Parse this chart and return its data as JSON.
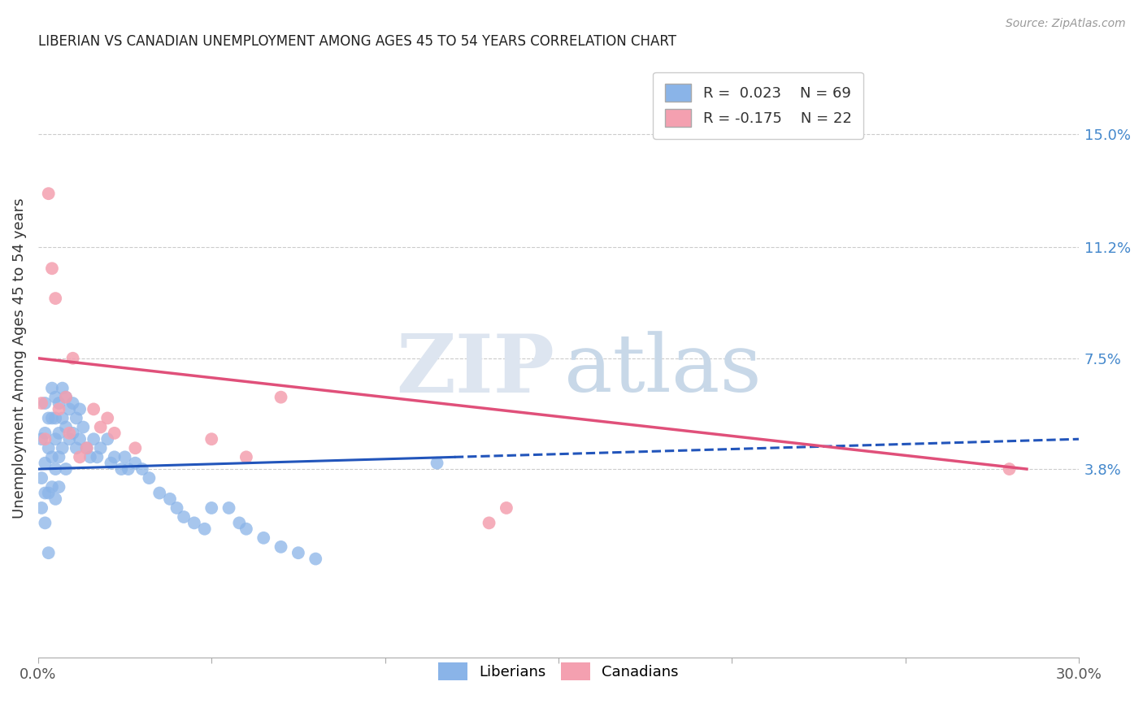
{
  "title": "LIBERIAN VS CANADIAN UNEMPLOYMENT AMONG AGES 45 TO 54 YEARS CORRELATION CHART",
  "source": "Source: ZipAtlas.com",
  "ylabel": "Unemployment Among Ages 45 to 54 years",
  "xlim": [
    0,
    0.3
  ],
  "ylim": [
    -0.025,
    0.175
  ],
  "ytick_positions": [
    0.038,
    0.075,
    0.112,
    0.15
  ],
  "ytick_labels": [
    "3.8%",
    "7.5%",
    "11.2%",
    "15.0%"
  ],
  "liberian_color": "#8ab4e8",
  "canadian_color": "#f4a0b0",
  "trend_liberian_color": "#2255bb",
  "trend_canadian_color": "#e0507a",
  "liberian_label": "Liberians",
  "canadian_label": "Canadians",
  "legend_R_liberian": "R =  0.023",
  "legend_N_liberian": "N = 69",
  "legend_R_canadian": "R = -0.175",
  "legend_N_canadian": "N = 22",
  "lib_trend_x0": 0.0,
  "lib_trend_y0": 0.038,
  "lib_trend_x1": 0.12,
  "lib_trend_y1": 0.042,
  "lib_trend_dash_x0": 0.12,
  "lib_trend_dash_y0": 0.042,
  "lib_trend_dash_x1": 0.3,
  "lib_trend_dash_y1": 0.048,
  "can_trend_x0": 0.0,
  "can_trend_y0": 0.075,
  "can_trend_x1": 0.285,
  "can_trend_y1": 0.038,
  "liberian_x": [
    0.001,
    0.001,
    0.001,
    0.002,
    0.002,
    0.002,
    0.002,
    0.002,
    0.003,
    0.003,
    0.003,
    0.003,
    0.004,
    0.004,
    0.004,
    0.004,
    0.005,
    0.005,
    0.005,
    0.005,
    0.005,
    0.006,
    0.006,
    0.006,
    0.006,
    0.007,
    0.007,
    0.007,
    0.008,
    0.008,
    0.008,
    0.009,
    0.009,
    0.01,
    0.01,
    0.011,
    0.011,
    0.012,
    0.012,
    0.013,
    0.014,
    0.015,
    0.016,
    0.017,
    0.018,
    0.02,
    0.021,
    0.022,
    0.024,
    0.025,
    0.026,
    0.028,
    0.03,
    0.032,
    0.035,
    0.038,
    0.04,
    0.042,
    0.045,
    0.048,
    0.05,
    0.055,
    0.058,
    0.06,
    0.065,
    0.07,
    0.075,
    0.08,
    0.115
  ],
  "liberian_y": [
    0.048,
    0.035,
    0.025,
    0.06,
    0.05,
    0.04,
    0.03,
    0.02,
    0.055,
    0.045,
    0.03,
    0.01,
    0.065,
    0.055,
    0.042,
    0.032,
    0.062,
    0.055,
    0.048,
    0.038,
    0.028,
    0.06,
    0.05,
    0.042,
    0.032,
    0.065,
    0.055,
    0.045,
    0.062,
    0.052,
    0.038,
    0.058,
    0.048,
    0.06,
    0.05,
    0.055,
    0.045,
    0.058,
    0.048,
    0.052,
    0.045,
    0.042,
    0.048,
    0.042,
    0.045,
    0.048,
    0.04,
    0.042,
    0.038,
    0.042,
    0.038,
    0.04,
    0.038,
    0.035,
    0.03,
    0.028,
    0.025,
    0.022,
    0.02,
    0.018,
    0.025,
    0.025,
    0.02,
    0.018,
    0.015,
    0.012,
    0.01,
    0.008,
    0.04
  ],
  "canadian_x": [
    0.001,
    0.002,
    0.003,
    0.004,
    0.005,
    0.006,
    0.008,
    0.009,
    0.01,
    0.012,
    0.014,
    0.016,
    0.018,
    0.02,
    0.022,
    0.028,
    0.05,
    0.06,
    0.07,
    0.13,
    0.135,
    0.28
  ],
  "canadian_y": [
    0.06,
    0.048,
    0.13,
    0.105,
    0.095,
    0.058,
    0.062,
    0.05,
    0.075,
    0.042,
    0.045,
    0.058,
    0.052,
    0.055,
    0.05,
    0.045,
    0.048,
    0.042,
    0.062,
    0.02,
    0.025,
    0.038
  ]
}
